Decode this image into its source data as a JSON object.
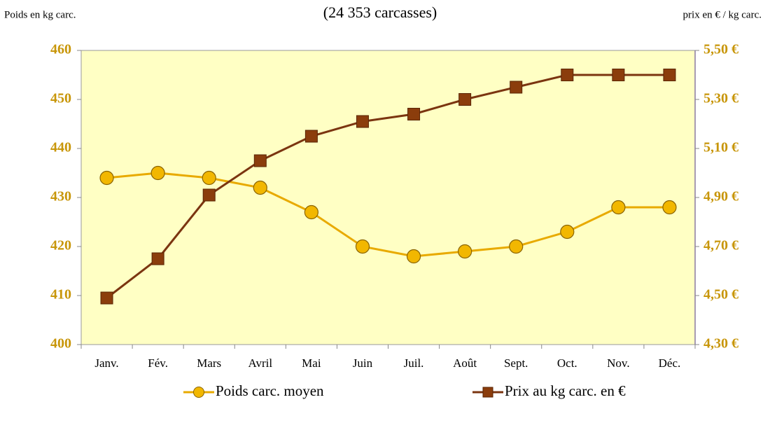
{
  "chart_data": {
    "type": "line",
    "title": "(24 353 carcasses)",
    "y_label": "Poids en kg carc.",
    "y2_label": "prix en € / kg carc.",
    "categories": [
      "Janv.",
      "Fév.",
      "Mars",
      "Avril",
      "Mai",
      "Juin",
      "Juil.",
      "Août",
      "Sept.",
      "Oct.",
      "Nov.",
      "Déc."
    ],
    "series": [
      {
        "name": "Poids carc. moyen",
        "color": "#e8aa00",
        "marker": "circle",
        "values": [
          434,
          435,
          434,
          432,
          427,
          420,
          418,
          419,
          420,
          423,
          428,
          428
        ]
      },
      {
        "name": "Prix au kg carc. en €",
        "color": "#7b3510",
        "marker": "square",
        "axis": "y2",
        "values": [
          4.49,
          4.65,
          4.91,
          5.05,
          5.15,
          5.21,
          5.24,
          5.3,
          5.35,
          5.4,
          5.4,
          5.4
        ]
      }
    ],
    "ylim": [
      400,
      460
    ],
    "yticks": [
      400,
      410,
      420,
      430,
      440,
      450,
      460
    ],
    "y2lim": [
      4.3,
      5.5
    ],
    "y2ticks": [
      {
        "value": 4.3,
        "label": "4,30 €"
      },
      {
        "value": 4.5,
        "label": "4,50 €"
      },
      {
        "value": 4.7,
        "label": "4,70 €"
      },
      {
        "value": 4.9,
        "label": "4,90 €"
      },
      {
        "value": 5.1,
        "label": "5,10 €"
      },
      {
        "value": 5.3,
        "label": "5,30 €"
      },
      {
        "value": 5.5,
        "label": "5,50 €"
      }
    ],
    "grid": false,
    "legend": "bottom",
    "background": "#ffffc4"
  }
}
